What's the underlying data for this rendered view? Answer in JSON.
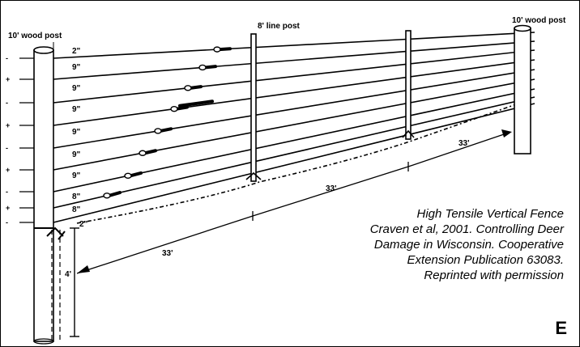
{
  "labels": {
    "left_post": "10' wood post",
    "line_post": "8' line post",
    "right_post": "10' wood post",
    "post_height": "4'"
  },
  "wire_spacings": [
    "2\"",
    "9\"",
    "9\"",
    "9\"",
    "9\"",
    "9\"",
    "9\"",
    "8\"",
    "8\"",
    "2\""
  ],
  "polarity": [
    "-",
    "+",
    "-",
    "+",
    "-",
    "+",
    "-",
    "+",
    "-"
  ],
  "distances": [
    "33'",
    "33'",
    "33'"
  ],
  "caption": [
    "High Tensile Vertical Fence",
    "Craven et al, 2001. Controlling Deer",
    "Damage in Wisconsin. Cooperative",
    "Extension Publication 63083.",
    "Reprinted with permission"
  ],
  "panel_letter": "E",
  "colors": {
    "ink": "#000000",
    "background": "#ffffff"
  }
}
